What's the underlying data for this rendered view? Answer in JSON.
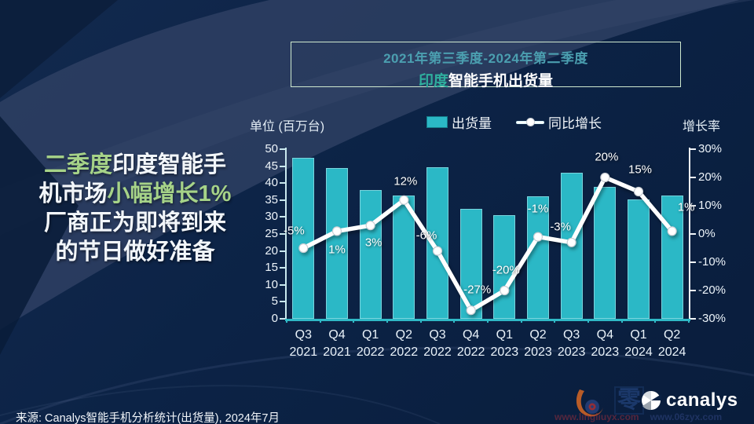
{
  "title": {
    "line1": "2021年第三季度-2024年第二季度",
    "line2_prefix": "印度",
    "line2_main": "智能手机出货量"
  },
  "headline": {
    "seg1": "二季度",
    "seg2": "印度智能手",
    "seg3": "机市场",
    "seg4": "小幅增长1%",
    "seg5": "厂商正为即将到来",
    "seg6": "的节日做好准备"
  },
  "legend": {
    "bars": "出货量",
    "line": "同比增长"
  },
  "chart": {
    "left_axis_title": "单位 (百万台)",
    "right_axis_title": "增长率"
  },
  "chart_data": {
    "type": "bar",
    "title": "印度智能手机出货量 2021Q3-2024Q2",
    "categories": [
      [
        "Q3",
        "2021"
      ],
      [
        "Q4",
        "2021"
      ],
      [
        "Q1",
        "2022"
      ],
      [
        "Q2",
        "2022"
      ],
      [
        "Q3",
        "2022"
      ],
      [
        "Q4",
        "2022"
      ],
      [
        "Q1",
        "2023"
      ],
      [
        "Q2",
        "2023"
      ],
      [
        "Q3",
        "2023"
      ],
      [
        "Q4",
        "2023"
      ],
      [
        "Q1",
        "2024"
      ],
      [
        "Q2",
        "2024"
      ]
    ],
    "series": [
      {
        "name": "出货量",
        "type": "bar",
        "axis": "left",
        "values": [
          47.5,
          44.5,
          38.0,
          36.4,
          44.6,
          32.4,
          30.6,
          36.1,
          43.0,
          38.9,
          35.3,
          36.4
        ]
      },
      {
        "name": "同比增长",
        "type": "line",
        "axis": "right",
        "values": [
          -5,
          1,
          3,
          12,
          -6,
          -27,
          -20,
          -1,
          -3,
          20,
          15,
          1
        ],
        "labels": [
          "-5%",
          "1%",
          "3%",
          "12%",
          "-6%",
          "-27%",
          "-20%",
          "-1%",
          "-3%",
          "20%",
          "15%",
          "1%"
        ]
      }
    ],
    "left_axis": {
      "min": 0,
      "max": 50,
      "step": 5,
      "ticks": [
        "0",
        "5",
        "10",
        "15",
        "20",
        "25",
        "30",
        "35",
        "40",
        "45",
        "50"
      ]
    },
    "right_axis": {
      "min": -30,
      "max": 30,
      "step": 10,
      "ticks": [
        "30%",
        "20%",
        "10%",
        "0%",
        "-10%",
        "-20%",
        "-30%"
      ]
    },
    "colors": {
      "bar": "#2bb8c6",
      "line": "#ffffff",
      "accent_green": "#a6d388",
      "accent_teal": "#4b9fb0"
    },
    "legend_position": "top",
    "grid": false
  },
  "source": {
    "text": "来源: Canalys智能手机分析统计(出货量), 2024年7月"
  },
  "footer": {
    "canalys": "canalys",
    "seal": "零",
    "url1": "www.lingliuyx.com",
    "url2": "www.06zyx.com"
  }
}
